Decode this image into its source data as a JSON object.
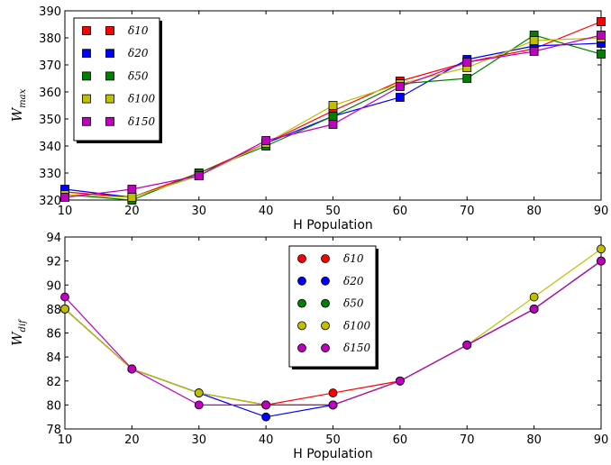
{
  "chart_data": [
    {
      "type": "line",
      "marker": "square",
      "x": [
        10,
        20,
        30,
        40,
        50,
        60,
        70,
        80,
        90
      ],
      "xlabel": "H Population",
      "ylabel_main": "W",
      "ylabel_sub": "max",
      "xlim": [
        10,
        90
      ],
      "ylim": [
        320,
        390
      ],
      "xticks": [
        10,
        20,
        30,
        40,
        50,
        60,
        70,
        80,
        90
      ],
      "yticks": [
        320,
        330,
        340,
        350,
        360,
        370,
        380,
        390
      ],
      "legend_position": "top-left",
      "series": [
        {
          "name": "δ10",
          "color": "#ff0000",
          "values": [
            323,
            321,
            330,
            341,
            353,
            364,
            371,
            376,
            386
          ]
        },
        {
          "name": "δ20",
          "color": "#0000ff",
          "values": [
            324,
            321,
            329,
            341,
            351,
            358,
            372,
            377,
            378
          ]
        },
        {
          "name": "δ50",
          "color": "#008000",
          "values": [
            322,
            320,
            330,
            340,
            351,
            363,
            365,
            381,
            374
          ]
        },
        {
          "name": "δ100",
          "color": "#bfbf00",
          "values": [
            322,
            321,
            329,
            341,
            355,
            363,
            369,
            379,
            380
          ]
        },
        {
          "name": "δ150",
          "color": "#bf00bf",
          "values": [
            321,
            324,
            329,
            342,
            348,
            362,
            371,
            375,
            381
          ]
        }
      ]
    },
    {
      "type": "line",
      "marker": "circle",
      "x": [
        10,
        20,
        30,
        40,
        50,
        60,
        70,
        80,
        90
      ],
      "xlabel": "H Population",
      "ylabel_main": "W",
      "ylabel_sub": "dif",
      "xlim": [
        10,
        90
      ],
      "ylim": [
        78,
        94
      ],
      "xticks": [
        10,
        20,
        30,
        40,
        50,
        60,
        70,
        80,
        90
      ],
      "yticks": [
        78,
        80,
        82,
        84,
        86,
        88,
        90,
        92,
        94
      ],
      "legend_position": "top-center",
      "series": [
        {
          "name": "δ10",
          "color": "#ff0000",
          "values": [
            88,
            83,
            81,
            80,
            81,
            82,
            85,
            88,
            92
          ]
        },
        {
          "name": "δ20",
          "color": "#0000ff",
          "values": [
            88,
            83,
            81,
            79,
            80,
            82,
            85,
            88,
            92
          ]
        },
        {
          "name": "δ50",
          "color": "#008000",
          "values": [
            88,
            83,
            81,
            80,
            80,
            82,
            85,
            88,
            92
          ]
        },
        {
          "name": "δ100",
          "color": "#bfbf00",
          "values": [
            88,
            83,
            81,
            80,
            80,
            82,
            85,
            89,
            93
          ]
        },
        {
          "name": "δ150",
          "color": "#bf00bf",
          "values": [
            89,
            83,
            80,
            80,
            80,
            82,
            85,
            88,
            92
          ]
        }
      ]
    }
  ]
}
